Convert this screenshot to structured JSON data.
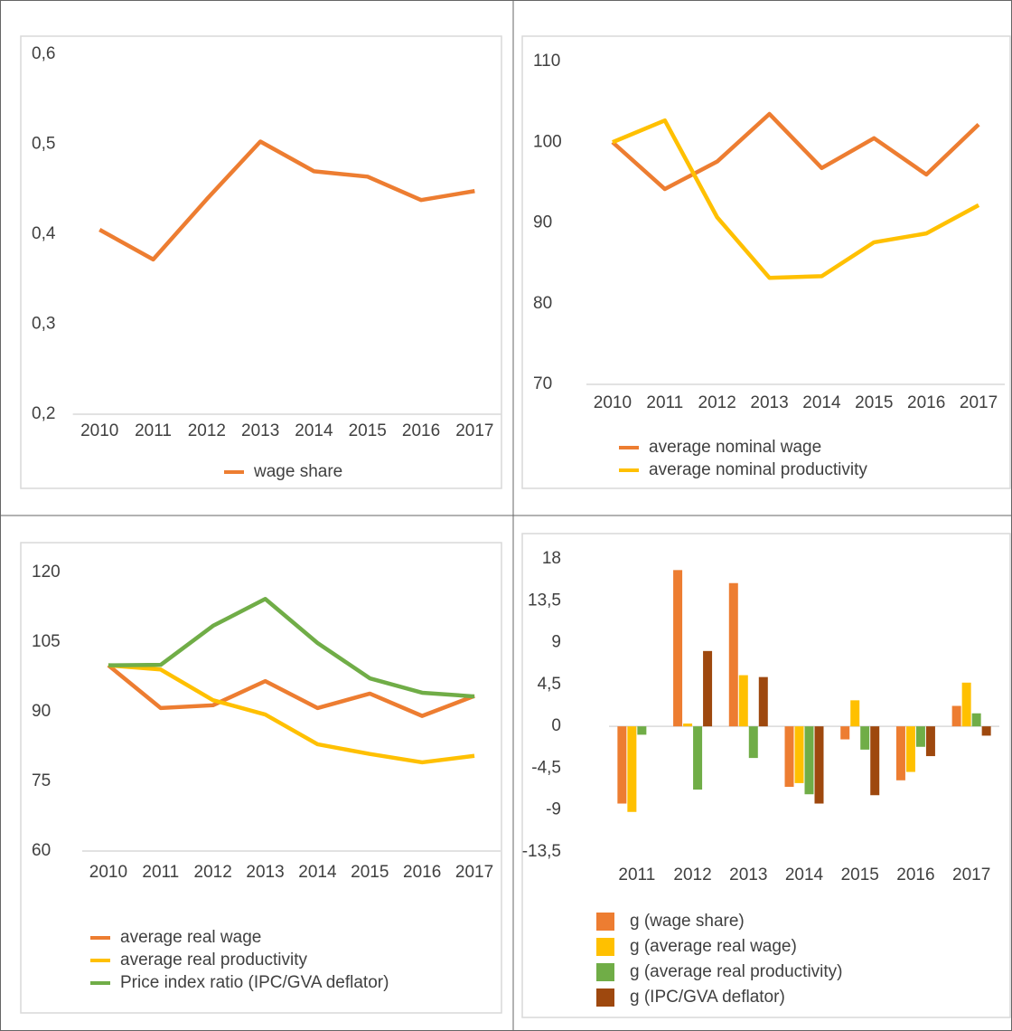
{
  "chart_data": [
    {
      "type": "line",
      "categories": [
        "2010",
        "2011",
        "2012",
        "2013",
        "2014",
        "2015",
        "2016",
        "2017"
      ],
      "series": [
        {
          "name": "wage share",
          "color": "#ed7d31",
          "values": [
            0.405,
            0.372,
            0.439,
            0.503,
            0.47,
            0.464,
            0.438,
            0.448
          ]
        }
      ],
      "ylim": [
        0.2,
        0.6
      ],
      "yticks": [
        {
          "value": 0.2,
          "label": "0,2"
        },
        {
          "value": 0.3,
          "label": "0,3"
        },
        {
          "value": 0.4,
          "label": "0,4"
        },
        {
          "value": 0.5,
          "label": "0,5"
        },
        {
          "value": 0.6,
          "label": "0,6"
        }
      ],
      "grid": false,
      "legend": "bottom"
    },
    {
      "type": "line",
      "categories": [
        "2010",
        "2011",
        "2012",
        "2013",
        "2014",
        "2015",
        "2016",
        "2017"
      ],
      "series": [
        {
          "name": "average nominal wage",
          "color": "#ed7d31",
          "values": [
            100,
            94.2,
            97.6,
            103.5,
            96.8,
            100.5,
            96.0,
            102.2
          ]
        },
        {
          "name": "average nominal productivity",
          "color": "#ffc000",
          "values": [
            100,
            102.7,
            90.7,
            83.2,
            83.4,
            87.6,
            88.7,
            92.2
          ]
        }
      ],
      "ylim": [
        70,
        110
      ],
      "yticks": [
        70,
        80,
        90,
        100,
        110
      ],
      "grid": false,
      "legend": "bottom"
    },
    {
      "type": "line",
      "categories": [
        "2010",
        "2011",
        "2012",
        "2013",
        "2014",
        "2015",
        "2016",
        "2017"
      ],
      "series": [
        {
          "name": "average real wage",
          "color": "#ed7d31",
          "values": [
            100,
            90.8,
            91.4,
            96.6,
            90.8,
            93.9,
            89.1,
            93.4
          ]
        },
        {
          "name": "average real productivity",
          "color": "#ffc000",
          "values": [
            100,
            99.1,
            92.5,
            89.4,
            83.0,
            80.9,
            79.1,
            80.5
          ]
        },
        {
          "name": "Price index ratio (IPC/GVA deflator)",
          "color": "#70ad47",
          "values": [
            100,
            100.1,
            108.5,
            114.3,
            104.8,
            97.2,
            94.1,
            93.3
          ]
        }
      ],
      "ylim": [
        60,
        120
      ],
      "yticks": [
        60,
        75,
        90,
        105,
        120
      ],
      "grid": false,
      "legend": "bottom"
    },
    {
      "type": "bar",
      "categories": [
        "2011",
        "2012",
        "2013",
        "2014",
        "2015",
        "2016",
        "2017"
      ],
      "series": [
        {
          "name": "g (wage share)",
          "color": "#ed7d31",
          "values": [
            -8.3,
            16.8,
            15.4,
            -6.5,
            -1.4,
            -5.8,
            2.2
          ]
        },
        {
          "name": "g (average real wage)",
          "color": "#ffc000",
          "values": [
            -9.2,
            0.3,
            5.5,
            -6.1,
            2.8,
            -4.9,
            4.7
          ]
        },
        {
          "name": "g (average real productivity)",
          "color": "#70ad47",
          "values": [
            -0.9,
            -6.8,
            -3.4,
            -7.3,
            -2.5,
            -2.2,
            1.4
          ]
        },
        {
          "name": "g (IPC/GVA deflator)",
          "color": "#9e480e",
          "values": [
            null,
            8.1,
            5.3,
            -8.3,
            -7.4,
            -3.2,
            -1.0
          ]
        }
      ],
      "ylim": [
        -13.5,
        18
      ],
      "yticks": [
        {
          "value": -13.5,
          "label": "-13,5"
        },
        -9,
        {
          "value": -4.5,
          "label": "-4,5"
        },
        0,
        {
          "value": 4.5,
          "label": "4,5"
        },
        9,
        {
          "value": 13.5,
          "label": "13,5"
        },
        18
      ],
      "grid": false,
      "legend": "bottom"
    }
  ]
}
